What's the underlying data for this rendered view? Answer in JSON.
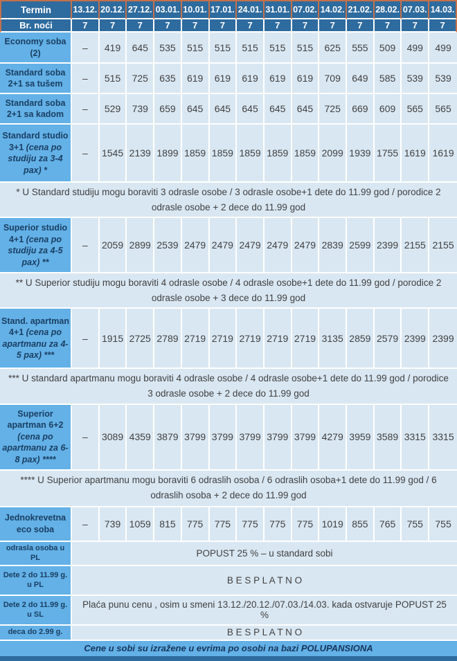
{
  "colors": {
    "header_bg": "#2e6b9e",
    "header_border": "#c4714a",
    "label_bg": "#63b1e7",
    "cell_bg": "#d9e7f2",
    "grid": "#ffffff",
    "cell_text": "#404040",
    "label_text": "#1a3f63",
    "header_text": "#ffffff",
    "footer_text": "#17365d"
  },
  "header": {
    "termin_label": "Termin",
    "nights_label": "Br. noći",
    "dates": [
      "13.12.",
      "20.12.",
      "27.12.",
      "03.01.",
      "10.01.",
      "17.01.",
      "24.01.",
      "31.01.",
      "07.02.",
      "14.02.",
      "21.02.",
      "28.02.",
      "07.03.",
      "14.03."
    ],
    "nights": [
      "7",
      "7",
      "7",
      "7",
      "7",
      "7",
      "7",
      "7",
      "7",
      "7",
      "7",
      "7",
      "7",
      "7"
    ]
  },
  "rows": [
    {
      "kind": "price",
      "label": "Economy soba (2)",
      "values": [
        "–",
        "419",
        "645",
        "535",
        "515",
        "515",
        "515",
        "515",
        "515",
        "625",
        "555",
        "509",
        "499",
        "499"
      ]
    },
    {
      "kind": "price",
      "label": "Standard soba 2+1 sa tušem",
      "values": [
        "–",
        "515",
        "725",
        "635",
        "619",
        "619",
        "619",
        "619",
        "619",
        "709",
        "649",
        "585",
        "539",
        "539"
      ]
    },
    {
      "kind": "price",
      "label": "Standard soba 2+1 sa kadom",
      "values": [
        "–",
        "529",
        "739",
        "659",
        "645",
        "645",
        "645",
        "645",
        "645",
        "725",
        "669",
        "609",
        "565",
        "565"
      ]
    },
    {
      "kind": "price",
      "label": "Standard studio 3+1",
      "label_italic": "(cena po studiju za 3-4 pax) *",
      "values": [
        "–",
        "1545",
        "2139",
        "1899",
        "1859",
        "1859",
        "1859",
        "1859",
        "1859",
        "2099",
        "1939",
        "1755",
        "1619",
        "1619"
      ]
    },
    {
      "kind": "note",
      "text": "* U Standard studiju mogu boraviti 3 odrasle osobe / 3 odrasle osobe+1 dete do 11.99 god / porodice 2 odrasle osobe + 2 dece do 11.99 god"
    },
    {
      "kind": "price",
      "label": "Superior studio 4+1",
      "label_italic": "(cena po studiju za 4-5 pax) **",
      "values": [
        "–",
        "2059",
        "2899",
        "2539",
        "2479",
        "2479",
        "2479",
        "2479",
        "2479",
        "2839",
        "2599",
        "2399",
        "2155",
        "2155"
      ]
    },
    {
      "kind": "note",
      "text": "** U Superior studiju mogu boraviti 4 odrasle osobe / 4 odrasle osobe+1 dete do 11.99 god / porodice 2 odrasle osobe + 3 dece do 11.99 god"
    },
    {
      "kind": "price",
      "label": "Stand. apartman 4+1",
      "label_italic": "(cena po apartmanu za 4-5 pax) ***",
      "values": [
        "–",
        "1915",
        "2725",
        "2789",
        "2719",
        "2719",
        "2719",
        "2719",
        "2719",
        "3135",
        "2859",
        "2579",
        "2399",
        "2399"
      ]
    },
    {
      "kind": "note",
      "text": "*** U standard apartmanu mogu boraviti 4 odrasle osobe / 4 odrasle osobe+1 dete do 11.99 god / porodice 3 odrasle osobe + 2 dece do 11.99 god"
    },
    {
      "kind": "price",
      "label": "Superior apartman 6+2",
      "label_italic": "(cena po apartmanu za 6-8 pax) ****",
      "values": [
        "–",
        "3089",
        "4359",
        "3879",
        "3799",
        "3799",
        "3799",
        "3799",
        "3799",
        "4279",
        "3959",
        "3589",
        "3315",
        "3315"
      ]
    },
    {
      "kind": "note",
      "text": "**** U Superior apartmanu mogu boraviti 6 odraslih osoba / 6 odraslih osoba+1 dete do 11.99 god / 6 odraslih osoba + 2 dece do 11.99 god"
    },
    {
      "kind": "price",
      "label": "Jednokrevetna eco soba",
      "values": [
        "–",
        "739",
        "1059",
        "815",
        "775",
        "775",
        "775",
        "775",
        "775",
        "1019",
        "855",
        "765",
        "755",
        "755"
      ]
    },
    {
      "kind": "span",
      "label": "odrasla osoba u PL",
      "value": "POPUST 25 % – u standard sobi"
    },
    {
      "kind": "span",
      "label": "Dete 2 do 11.99 g. u PL",
      "value": "B E S P L A T N O"
    },
    {
      "kind": "span",
      "label": "Dete 2 do 11.99 g. u SL",
      "value": "Plaća punu cenu , osim u smeni 13.12./20.12./07.03./14.03. kada ostvaruje POPUST 25 %"
    },
    {
      "kind": "span",
      "label": "deca do 2.99 g.",
      "value": "B E S P L A T N O"
    }
  ],
  "footer": {
    "note": "Cene u sobi su izražene u evrima po osobi na bazi POLUPANSIONA"
  }
}
